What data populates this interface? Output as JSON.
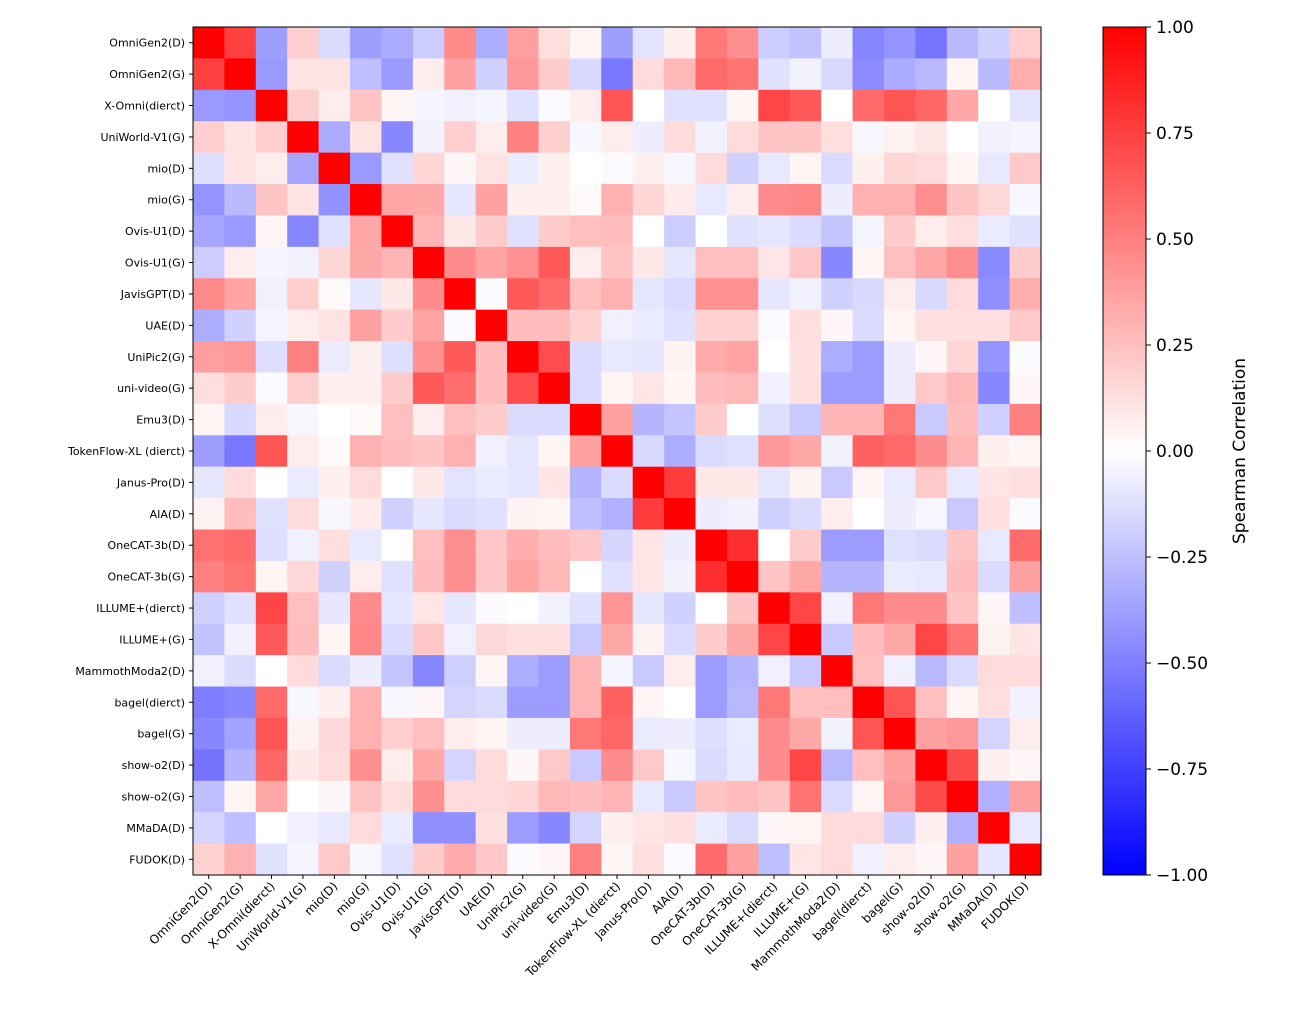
{
  "chart_data": {
    "type": "heatmap",
    "title": "",
    "xlabel": "",
    "ylabel": "",
    "labels": [
      "OmniGen2(D)",
      "OmniGen2(G)",
      "X-Omni(dierct)",
      "UniWorld-V1(G)",
      "mio(D)",
      "mio(G)",
      "Ovis-U1(D)",
      "Ovis-U1(G)",
      "JavisGPT(D)",
      "UAE(D)",
      "UniPic2(G)",
      "uni-video(G)",
      "Emu3(D)",
      "TokenFlow-XL (dierct)",
      "Janus-Pro(D)",
      "AIA(D)",
      "OneCAT-3b(D)",
      "OneCAT-3b(G)",
      "ILLUME+(dierct)",
      "ILLUME+(G)",
      "MammothModa2(D)",
      "bagel(dierct)",
      "bagel(G)",
      "show-o2(D)",
      "show-o2(G)",
      "MMaDA(D)",
      "FUDOK(D)"
    ],
    "values": [
      [
        1,
        0.75,
        -0.38,
        0.19,
        -0.14,
        -0.38,
        -0.33,
        -0.2,
        0.46,
        -0.32,
        0.38,
        0.13,
        0.04,
        -0.38,
        -0.11,
        0.06,
        0.53,
        0.44,
        -0.2,
        -0.24,
        -0.07,
        -0.48,
        -0.42,
        -0.54,
        -0.27,
        -0.18,
        0.19
      ],
      [
        0.75,
        1,
        -0.4,
        0.11,
        0.11,
        -0.25,
        -0.4,
        0.07,
        0.37,
        -0.18,
        0.4,
        0.2,
        -0.15,
        -0.53,
        0.14,
        0.28,
        0.58,
        0.55,
        -0.12,
        -0.05,
        -0.15,
        -0.45,
        -0.33,
        -0.28,
        0.04,
        -0.27,
        0.32
      ],
      [
        -0.4,
        -0.42,
        1,
        0.19,
        0.07,
        0.23,
        0.04,
        -0.04,
        -0.06,
        -0.04,
        -0.12,
        -0.02,
        0.07,
        0.67,
        0,
        -0.12,
        -0.12,
        0.04,
        0.73,
        0.65,
        0,
        0.58,
        0.67,
        0.6,
        0.35,
        0,
        -0.11
      ],
      [
        0.19,
        0.11,
        0.19,
        1,
        -0.33,
        0.11,
        -0.47,
        -0.05,
        0.19,
        0.07,
        0.5,
        0.19,
        -0.03,
        0.07,
        -0.07,
        0.14,
        -0.05,
        0.14,
        0.23,
        0.23,
        0.13,
        -0.03,
        0.05,
        0.09,
        0,
        -0.05,
        -0.04
      ],
      [
        -0.13,
        0.11,
        0.07,
        -0.35,
        1,
        -0.4,
        -0.12,
        0.16,
        0.03,
        0.11,
        -0.08,
        0.06,
        0,
        -0.02,
        0.06,
        -0.03,
        0.14,
        -0.18,
        -0.09,
        0.04,
        -0.14,
        0.06,
        0.16,
        0.14,
        0.04,
        -0.09,
        0.21
      ],
      [
        -0.42,
        -0.27,
        0.23,
        0.11,
        -0.43,
        1,
        0.35,
        0.34,
        -0.1,
        0.37,
        0.06,
        0.06,
        0.02,
        0.31,
        0.16,
        0.08,
        -0.09,
        0.07,
        0.45,
        0.47,
        -0.07,
        0.31,
        0.31,
        0.44,
        0.23,
        0.15,
        -0.03
      ],
      [
        -0.35,
        -0.4,
        0.04,
        -0.47,
        -0.12,
        0.35,
        1,
        0.29,
        0.09,
        0.2,
        -0.12,
        0.2,
        0.25,
        0.26,
        0,
        -0.2,
        0,
        -0.12,
        -0.1,
        -0.14,
        -0.23,
        -0.04,
        0.2,
        0.07,
        0.13,
        -0.08,
        -0.12
      ],
      [
        -0.2,
        0.07,
        -0.04,
        -0.05,
        0.16,
        0.34,
        0.29,
        1,
        0.45,
        0.36,
        0.43,
        0.65,
        0.07,
        0.23,
        0.09,
        -0.1,
        0.25,
        0.25,
        0.1,
        0.22,
        -0.47,
        0.04,
        0.25,
        0.35,
        0.44,
        -0.46,
        0.2
      ],
      [
        0.46,
        0.36,
        -0.06,
        0.19,
        0.02,
        -0.1,
        0.09,
        0.45,
        1,
        -0.02,
        0.65,
        0.58,
        0.25,
        0.31,
        -0.1,
        -0.14,
        0.43,
        0.43,
        -0.1,
        -0.06,
        -0.18,
        -0.15,
        0.07,
        -0.15,
        0.14,
        -0.44,
        0.32
      ],
      [
        -0.32,
        -0.18,
        -0.04,
        0.07,
        0.11,
        0.37,
        0.2,
        0.36,
        -0.02,
        1,
        0.26,
        0.26,
        0.18,
        -0.06,
        -0.08,
        -0.12,
        0.18,
        0.18,
        -0.02,
        0.13,
        0.03,
        -0.14,
        0.04,
        0.12,
        0.12,
        0.12,
        0.21
      ],
      [
        0.38,
        0.4,
        -0.13,
        0.5,
        -0.08,
        0.06,
        -0.13,
        0.43,
        0.65,
        0.26,
        1,
        0.7,
        -0.14,
        -0.09,
        -0.1,
        0.05,
        0.33,
        0.36,
        0,
        0.12,
        -0.32,
        -0.39,
        -0.07,
        0.03,
        0.16,
        -0.42,
        -0.02
      ],
      [
        0.13,
        0.2,
        -0.02,
        0.19,
        0.06,
        0.06,
        0.2,
        0.65,
        0.57,
        0.26,
        0.7,
        1,
        -0.14,
        0.04,
        0.1,
        0.04,
        0.26,
        0.28,
        -0.06,
        0.12,
        -0.39,
        -0.39,
        -0.07,
        0.21,
        0.28,
        -0.47,
        0.03
      ],
      [
        0.04,
        -0.15,
        0.07,
        -0.03,
        0,
        0.02,
        0.25,
        0.07,
        0.25,
        0.2,
        -0.14,
        -0.14,
        1,
        0.37,
        -0.29,
        -0.23,
        0.2,
        0,
        -0.13,
        -0.21,
        0.29,
        0.29,
        0.53,
        -0.21,
        0.26,
        -0.18,
        0.5
      ],
      [
        -0.38,
        -0.53,
        0.67,
        0.07,
        0.02,
        0.31,
        0.26,
        0.23,
        0.31,
        -0.06,
        -0.1,
        0.04,
        0.37,
        1,
        -0.15,
        -0.32,
        -0.14,
        -0.12,
        0.4,
        0.34,
        -0.05,
        0.62,
        0.59,
        0.45,
        0.29,
        0.06,
        0.04
      ],
      [
        -0.1,
        0.14,
        0,
        -0.08,
        0.06,
        0.14,
        0,
        0.09,
        -0.11,
        -0.08,
        -0.1,
        0.1,
        -0.29,
        -0.14,
        1,
        0.77,
        0.09,
        0.09,
        -0.1,
        0.05,
        -0.21,
        0.04,
        -0.08,
        0.21,
        -0.09,
        0.1,
        0.12
      ],
      [
        0.05,
        0.26,
        -0.12,
        0.14,
        -0.03,
        0.08,
        -0.18,
        -0.1,
        -0.14,
        -0.12,
        0.05,
        0.04,
        -0.25,
        -0.31,
        0.77,
        1,
        -0.07,
        -0.05,
        -0.18,
        -0.14,
        0.07,
        0,
        -0.07,
        -0.03,
        -0.21,
        0.12,
        -0.02
      ],
      [
        0.56,
        0.58,
        -0.13,
        -0.06,
        0.13,
        -0.09,
        0,
        0.25,
        0.44,
        0.22,
        0.32,
        0.26,
        0.22,
        -0.16,
        0.1,
        -0.07,
        1,
        0.82,
        0,
        0.2,
        -0.39,
        -0.39,
        -0.12,
        -0.14,
        0.23,
        -0.09,
        0.58
      ],
      [
        0.5,
        0.55,
        0.04,
        0.15,
        -0.18,
        0.07,
        -0.12,
        0.26,
        0.44,
        0.22,
        0.36,
        0.28,
        0,
        -0.12,
        0.1,
        -0.05,
        0.82,
        1,
        0.23,
        0.34,
        -0.29,
        -0.29,
        -0.08,
        -0.09,
        0.26,
        -0.14,
        0.37
      ],
      [
        -0.18,
        -0.12,
        0.73,
        0.25,
        -0.1,
        0.45,
        -0.1,
        0.1,
        -0.1,
        -0.02,
        0,
        -0.05,
        -0.12,
        0.42,
        -0.1,
        -0.18,
        0,
        0.23,
        1,
        0.73,
        -0.05,
        0.53,
        0.45,
        0.45,
        0.23,
        0.03,
        -0.25
      ],
      [
        -0.24,
        -0.05,
        0.65,
        0.26,
        0.04,
        0.47,
        -0.14,
        0.22,
        -0.06,
        0.15,
        0.12,
        0.12,
        -0.21,
        0.34,
        0.05,
        -0.14,
        0.2,
        0.34,
        0.73,
        1,
        -0.21,
        0.26,
        0.34,
        0.73,
        0.55,
        0.05,
        0.1
      ],
      [
        -0.06,
        -0.14,
        0,
        0.14,
        -0.14,
        -0.07,
        -0.23,
        -0.47,
        -0.19,
        0.04,
        -0.32,
        -0.39,
        0.29,
        -0.04,
        -0.21,
        0.07,
        -0.39,
        -0.29,
        -0.06,
        -0.21,
        1,
        0.25,
        -0.06,
        -0.28,
        -0.14,
        0.14,
        0.14
      ],
      [
        -0.51,
        -0.47,
        0.58,
        -0.03,
        0.06,
        0.31,
        -0.03,
        0.03,
        -0.17,
        -0.14,
        -0.39,
        -0.39,
        0.29,
        0.62,
        0.04,
        0,
        -0.39,
        -0.28,
        0.53,
        0.25,
        0.25,
        1,
        0.67,
        0.25,
        0.04,
        0.13,
        -0.06
      ],
      [
        -0.47,
        -0.36,
        0.67,
        0.05,
        0.15,
        0.31,
        0.19,
        0.25,
        0.07,
        0.04,
        -0.07,
        -0.07,
        0.53,
        0.6,
        -0.08,
        -0.07,
        -0.13,
        -0.08,
        0.45,
        0.34,
        -0.05,
        0.67,
        1,
        0.37,
        0.4,
        -0.17,
        0.07
      ],
      [
        -0.55,
        -0.29,
        0.6,
        0.09,
        0.14,
        0.44,
        0.07,
        0.35,
        -0.17,
        0.14,
        0.03,
        0.21,
        -0.21,
        0.45,
        0.21,
        -0.03,
        -0.14,
        -0.09,
        0.45,
        0.73,
        -0.28,
        0.25,
        0.37,
        1,
        0.71,
        0.06,
        0.03
      ],
      [
        -0.25,
        0.04,
        0.35,
        0,
        0.03,
        0.23,
        0.13,
        0.44,
        0.14,
        0.14,
        0.16,
        0.28,
        0.26,
        0.29,
        -0.09,
        -0.21,
        0.23,
        0.26,
        0.23,
        0.55,
        -0.14,
        0.04,
        0.4,
        0.71,
        1,
        -0.31,
        0.37
      ],
      [
        -0.17,
        -0.25,
        0,
        -0.06,
        -0.09,
        0.14,
        -0.08,
        -0.44,
        -0.44,
        0.12,
        -0.39,
        -0.47,
        -0.17,
        0.06,
        0.1,
        0.12,
        -0.08,
        -0.14,
        0.03,
        0.04,
        0.14,
        0.14,
        -0.18,
        0.06,
        -0.31,
        1,
        -0.09
      ],
      [
        0.18,
        0.31,
        -0.12,
        -0.04,
        0.21,
        -0.03,
        -0.12,
        0.2,
        0.33,
        0.22,
        -0.02,
        0.03,
        0.5,
        0.04,
        0.12,
        -0.02,
        0.58,
        0.37,
        -0.25,
        0.1,
        0.14,
        -0.06,
        0.07,
        0.03,
        0.37,
        -0.1,
        1
      ]
    ],
    "colormap": "bwr",
    "vmin": -1,
    "vmax": 1,
    "colorbar": {
      "label": "Spearman Correlation",
      "ticks": [
        "1.00",
        "0.75",
        "0.50",
        "0.25",
        "0.00",
        "−0.25",
        "−0.50",
        "−0.75",
        "−1.00"
      ],
      "tick_values": [
        1,
        0.75,
        0.5,
        0.25,
        0,
        -0.25,
        -0.5,
        -0.75,
        -1
      ],
      "position": "right"
    },
    "colors": {
      "low": "#0000ff",
      "mid": "#ffffff",
      "high": "#ff0000"
    }
  }
}
